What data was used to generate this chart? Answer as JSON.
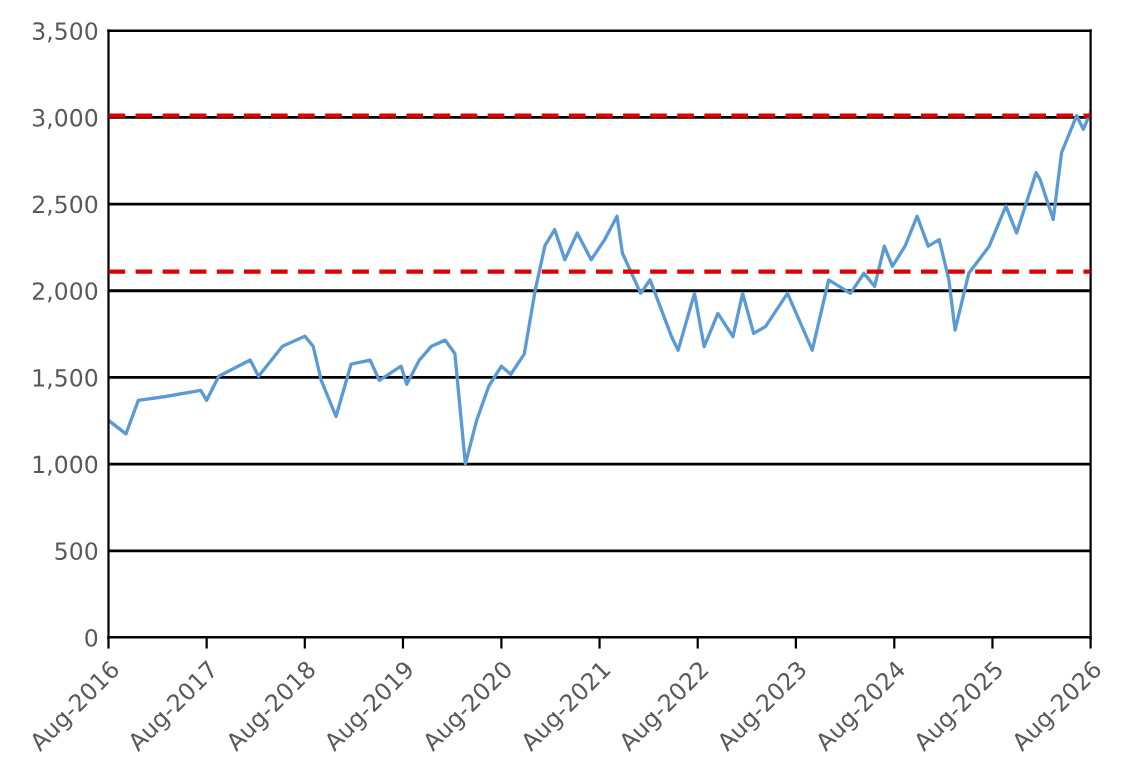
{
  "chart_data": {
    "type": "line",
    "x": [
      "2016-08-01",
      "2016-10-05",
      "2016-11-20",
      "2017-03-01",
      "2017-07-10",
      "2017-08-01",
      "2017-09-15",
      "2018-01-10",
      "2018-02-10",
      "2018-05-10",
      "2018-08-01",
      "2018-09-01",
      "2018-10-01",
      "2018-11-25",
      "2019-01-20",
      "2019-04-01",
      "2019-05-05",
      "2019-07-25",
      "2019-08-15",
      "2019-10-01",
      "2019-11-15",
      "2020-01-05",
      "2020-02-10",
      "2020-03-20",
      "2020-05-01",
      "2020-06-15",
      "2020-08-01",
      "2020-09-05",
      "2020-10-25",
      "2020-12-05",
      "2021-01-10",
      "2021-02-15",
      "2021-03-25",
      "2021-05-10",
      "2021-07-01",
      "2021-08-20",
      "2021-10-05",
      "2021-10-25",
      "2022-01-01",
      "2022-02-05",
      "2022-03-10",
      "2022-04-25",
      "2022-05-20",
      "2022-07-20",
      "2022-08-25",
      "2022-10-15",
      "2022-12-10",
      "2023-01-15",
      "2023-02-25",
      "2023-04-10",
      "2023-07-01",
      "2023-10-01",
      "2023-12-01",
      "2024-02-20",
      "2024-04-10",
      "2024-05-20",
      "2024-06-25",
      "2024-07-25",
      "2024-09-10",
      "2024-10-25",
      "2024-12-05",
      "2025-01-15",
      "2025-02-20",
      "2025-03-15",
      "2025-05-05",
      "2025-07-20",
      "2025-09-20",
      "2025-10-30",
      "2026-01-10",
      "2026-01-25",
      "2026-03-15",
      "2026-04-15",
      "2026-06-10",
      "2026-07-05",
      "2026-08-01"
    ],
    "series": [
      {
        "color": "#5b9bd5",
        "values": [
          1252,
          1174,
          1368,
          1390,
          1425,
          1368,
          1507,
          1600,
          1507,
          1680,
          1738,
          1680,
          1483,
          1275,
          1576,
          1600,
          1483,
          1565,
          1460,
          1600,
          1680,
          1715,
          1638,
          1000,
          1252,
          1449,
          1565,
          1518,
          1634,
          2005,
          2260,
          2353,
          2179,
          2333,
          2179,
          2295,
          2430,
          2217,
          1985,
          2063,
          1927,
          1738,
          1657,
          1985,
          1677,
          1869,
          1735,
          1985,
          1754,
          1793,
          1985,
          1657,
          2063,
          1985,
          2101,
          2025,
          2257,
          2141,
          2257,
          2430,
          2257,
          2295,
          2063,
          1773,
          2101,
          2257,
          2488,
          2333,
          2681,
          2643,
          2411,
          2797,
          3010,
          2932,
          3028
        ]
      }
    ],
    "xlim": [
      "2016-08-01",
      "2026-08-01"
    ],
    "xticks": [
      {
        "value": "2016-08-01",
        "label": "Aug-2016"
      },
      {
        "value": "2017-08-01",
        "label": "Aug-2017"
      },
      {
        "value": "2018-08-01",
        "label": "Aug-2018"
      },
      {
        "value": "2019-08-01",
        "label": "Aug-2019"
      },
      {
        "value": "2020-08-01",
        "label": "Aug-2020"
      },
      {
        "value": "2021-08-01",
        "label": "Aug-2021"
      },
      {
        "value": "2022-08-01",
        "label": "Aug-2022"
      },
      {
        "value": "2023-08-01",
        "label": "Aug-2023"
      },
      {
        "value": "2024-08-01",
        "label": "Aug-2024"
      },
      {
        "value": "2025-08-01",
        "label": "Aug-2025"
      },
      {
        "value": "2026-08-01",
        "label": "Aug-2026"
      }
    ],
    "ylim": [
      0,
      3500
    ],
    "yticks": [
      {
        "value": 0,
        "label": "0"
      },
      {
        "value": 500,
        "label": "500"
      },
      {
        "value": 1000,
        "label": "1,000"
      },
      {
        "value": 1500,
        "label": "1,500"
      },
      {
        "value": 2000,
        "label": "2,000"
      },
      {
        "value": 2500,
        "label": "2,500"
      },
      {
        "value": 3000,
        "label": "3,000"
      },
      {
        "value": 3500,
        "label": "3,500"
      }
    ],
    "grid": "y",
    "ref_lines": [
      {
        "axis": "y",
        "value": 3010,
        "color": "#e00000",
        "line_style": "dashed"
      },
      {
        "axis": "y",
        "value": 2110,
        "color": "#e00000",
        "line_style": "dashed"
      }
    ]
  }
}
